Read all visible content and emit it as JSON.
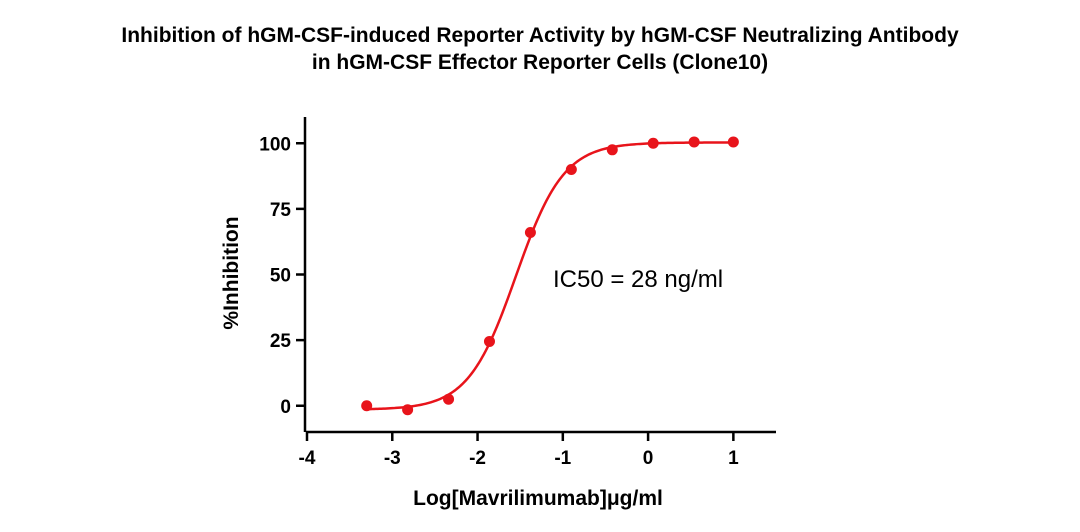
{
  "chart_data": {
    "type": "scatter",
    "title": "Inhibition of hGM-CSF-induced Reporter Activity by hGM-CSF Neutralizing Antibody",
    "subtitle": "in hGM-CSF Effector Reporter Cells (Clone10)",
    "xlabel": "Log[Mavrilimumab]μg/ml",
    "ylabel": "%Inhibition",
    "xlim": [
      -4,
      1.5
    ],
    "ylim": [
      -10,
      110
    ],
    "xticks": [
      -4,
      -3,
      -2,
      -1,
      0,
      1
    ],
    "xtick_labels": [
      "-4",
      "-3",
      "-2",
      "-1",
      "0",
      "1"
    ],
    "yticks": [
      0,
      25,
      50,
      75,
      100
    ],
    "ytick_labels": [
      "0",
      "25",
      "50",
      "75",
      "100"
    ],
    "grid": false,
    "annotation": "IC50 = 28 ng/ml",
    "series": [
      {
        "name": "Mavrilimumab",
        "color": "#e8141b",
        "x": [
          -3.3,
          -2.82,
          -2.34,
          -1.86,
          -1.38,
          -0.9,
          -0.42,
          0.06,
          0.54,
          1.0
        ],
        "y": [
          0,
          -1.5,
          2.5,
          24.5,
          66,
          90,
          97.5,
          100,
          100.5,
          100.5
        ]
      }
    ],
    "fit": {
      "model": "4PL",
      "bottom": -1.5,
      "top": 100.3,
      "logIC50": -1.55,
      "hill": 1.55,
      "xrange": [
        -3.3,
        1.0
      ]
    }
  }
}
